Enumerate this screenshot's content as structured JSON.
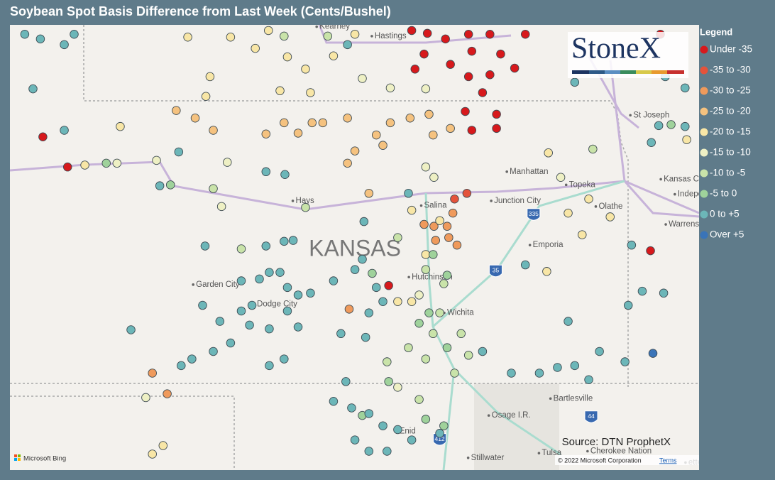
{
  "header": {
    "title": "Soybean Spot Basis Difference from Last Week (Cents/Bushel)"
  },
  "map": {
    "lon_range": [
      -102.05,
      -93.68
    ],
    "lat_range": [
      36.08,
      40.81
    ],
    "region_label": {
      "name": "KANSAS",
      "lon": -97.86,
      "lat": 38.42
    },
    "places": [
      {
        "name": "Kearney",
        "lon": -98.29,
        "lat": 40.79
      },
      {
        "name": "Hastings",
        "lon": -97.62,
        "lat": 40.69
      },
      {
        "name": "St Joseph",
        "lon": -94.48,
        "lat": 39.85
      },
      {
        "name": "Manhattan",
        "lon": -95.98,
        "lat": 39.25
      },
      {
        "name": "Topeka",
        "lon": -95.26,
        "lat": 39.11
      },
      {
        "name": "Kansas City",
        "lon": -94.11,
        "lat": 39.17
      },
      {
        "name": "Independence",
        "lon": -93.94,
        "lat": 39.01
      },
      {
        "name": "Hays",
        "lon": -98.58,
        "lat": 38.94
      },
      {
        "name": "Salina",
        "lon": -97.02,
        "lat": 38.89
      },
      {
        "name": "Junction City",
        "lon": -96.17,
        "lat": 38.94
      },
      {
        "name": "Olathe",
        "lon": -94.9,
        "lat": 38.88
      },
      {
        "name": "Emporia",
        "lon": -95.7,
        "lat": 38.47
      },
      {
        "name": "Warrensburg",
        "lon": -94.05,
        "lat": 38.69
      },
      {
        "name": "Garden City",
        "lon": -99.79,
        "lat": 38.05
      },
      {
        "name": "Dodge City",
        "lon": -99.05,
        "lat": 37.84
      },
      {
        "name": "Hutchinson",
        "lon": -97.17,
        "lat": 38.13
      },
      {
        "name": "Wichita",
        "lon": -96.74,
        "lat": 37.75
      },
      {
        "name": "Bartlesville",
        "lon": -95.45,
        "lat": 36.84
      },
      {
        "name": "Osage I.R.",
        "lon": -96.2,
        "lat": 36.66
      },
      {
        "name": "Enid",
        "lon": -97.32,
        "lat": 36.49
      },
      {
        "name": "Tulsa",
        "lon": -95.59,
        "lat": 36.26
      },
      {
        "name": "Cherokee Nation",
        "lon": -95.0,
        "lat": 36.28
      },
      {
        "name": "Stillwater",
        "lon": -96.45,
        "lat": 36.21
      },
      {
        "name": "ettev",
        "lon": -93.81,
        "lat": 36.16
      }
    ],
    "shields": [
      {
        "name": "335",
        "lon": -95.69,
        "lat": 38.79
      },
      {
        "name": "35",
        "lon": -96.15,
        "lat": 38.19
      },
      {
        "name": "412",
        "lon": -96.83,
        "lat": 36.4
      },
      {
        "name": "44",
        "lon": -94.99,
        "lat": 36.64
      }
    ],
    "source": "Source: DTN ProphetX",
    "provider": "Microsoft Bing",
    "copyright": "© 2022 Microsoft Corporation",
    "terms": "Terms"
  },
  "logo": "StoneX",
  "legend": {
    "title": "Legend",
    "items": [
      {
        "label": "Under -35",
        "color": "#d7191c",
        "points": [
          [
            -97.17,
            40.75
          ],
          [
            -96.98,
            40.72
          ],
          [
            -96.76,
            40.66
          ],
          [
            -96.48,
            40.71
          ],
          [
            -96.22,
            40.71
          ],
          [
            -95.79,
            40.71
          ],
          [
            -97.02,
            40.5
          ],
          [
            -96.7,
            40.39
          ],
          [
            -96.44,
            40.53
          ],
          [
            -96.09,
            40.5
          ],
          [
            -97.13,
            40.34
          ],
          [
            -96.22,
            40.28
          ],
          [
            -96.48,
            40.26
          ],
          [
            -95.92,
            40.35
          ],
          [
            -96.31,
            40.09
          ],
          [
            -96.52,
            39.89
          ],
          [
            -96.14,
            39.86
          ],
          [
            -96.44,
            39.69
          ],
          [
            -96.14,
            39.71
          ],
          [
            -101.65,
            39.62
          ],
          [
            -101.35,
            39.3
          ],
          [
            -97.45,
            38.04
          ],
          [
            -94.27,
            38.41
          ],
          [
            -94.15,
            40.71
          ]
        ]
      },
      {
        "label": "-35 to -30",
        "color": "#e4533b",
        "points": [
          [
            -96.65,
            38.96
          ],
          [
            -96.5,
            39.02
          ]
        ]
      },
      {
        "label": "-30 to -25",
        "color": "#ef9a5c",
        "points": [
          [
            -97.02,
            38.69
          ],
          [
            -96.9,
            38.67
          ],
          [
            -96.74,
            38.67
          ],
          [
            -96.67,
            38.81
          ],
          [
            -96.72,
            38.55
          ],
          [
            -96.88,
            38.52
          ],
          [
            -96.62,
            38.47
          ],
          [
            -97.93,
            37.79
          ],
          [
            -100.32,
            37.11
          ],
          [
            -100.14,
            36.89
          ]
        ]
      },
      {
        "label": "-25 to -20",
        "color": "#f5c27f",
        "points": [
          [
            -100.03,
            39.9
          ],
          [
            -99.8,
            39.82
          ],
          [
            -99.58,
            39.69
          ],
          [
            -98.94,
            39.65
          ],
          [
            -98.72,
            39.77
          ],
          [
            -98.55,
            39.66
          ],
          [
            -98.38,
            39.77
          ],
          [
            -98.25,
            39.77
          ],
          [
            -97.95,
            39.82
          ],
          [
            -97.43,
            39.77
          ],
          [
            -97.19,
            39.82
          ],
          [
            -97.6,
            39.64
          ],
          [
            -96.91,
            39.64
          ],
          [
            -96.7,
            39.71
          ],
          [
            -97.86,
            39.47
          ],
          [
            -97.52,
            39.53
          ],
          [
            -97.95,
            39.34
          ],
          [
            -97.69,
            39.02
          ],
          [
            -96.96,
            39.86
          ]
        ]
      },
      {
        "label": "-20 to -15",
        "color": "#f8e6a6",
        "points": [
          [
            -99.89,
            40.68
          ],
          [
            -99.37,
            40.68
          ],
          [
            -98.91,
            40.75
          ],
          [
            -99.07,
            40.56
          ],
          [
            -98.68,
            40.47
          ],
          [
            -98.46,
            40.34
          ],
          [
            -98.12,
            40.48
          ],
          [
            -97.86,
            40.71
          ],
          [
            -99.62,
            40.26
          ],
          [
            -99.67,
            40.05
          ],
          [
            -98.77,
            40.11
          ],
          [
            -98.4,
            40.09
          ],
          [
            -100.71,
            39.73
          ],
          [
            -101.14,
            39.32
          ],
          [
            -97.17,
            38.84
          ],
          [
            -96.83,
            38.73
          ],
          [
            -97.0,
            38.37
          ],
          [
            -97.34,
            37.87
          ],
          [
            -97.17,
            37.87
          ],
          [
            -100.32,
            36.25
          ],
          [
            -100.19,
            36.34
          ],
          [
            -95.53,
            38.19
          ],
          [
            -95.27,
            38.81
          ],
          [
            -95.02,
            38.96
          ],
          [
            -95.1,
            38.58
          ],
          [
            -94.76,
            38.77
          ],
          [
            -93.83,
            39.59
          ],
          [
            -95.51,
            39.45
          ]
        ]
      },
      {
        "label": "-15 to -10",
        "color": "#eef0c4",
        "points": [
          [
            -99.41,
            39.35
          ],
          [
            -100.27,
            39.37
          ],
          [
            -100.75,
            39.34
          ],
          [
            -97.43,
            40.14
          ],
          [
            -97.77,
            40.24
          ],
          [
            -97.0,
            40.13
          ],
          [
            -97.0,
            39.3
          ],
          [
            -96.9,
            39.19
          ],
          [
            -95.36,
            39.19
          ],
          [
            -99.48,
            38.88
          ],
          [
            -97.08,
            37.94
          ],
          [
            -100.4,
            36.85
          ],
          [
            -97.34,
            36.96
          ]
        ]
      },
      {
        "label": "-10 to -5",
        "color": "#c9e3a9",
        "points": [
          [
            -99.24,
            38.43
          ],
          [
            -98.72,
            40.69
          ],
          [
            -98.19,
            40.69
          ],
          [
            -97.34,
            38.55
          ],
          [
            -97.0,
            38.21
          ],
          [
            -96.78,
            38.06
          ],
          [
            -96.83,
            37.75
          ],
          [
            -96.91,
            37.53
          ],
          [
            -97.0,
            37.26
          ],
          [
            -97.21,
            37.38
          ],
          [
            -96.65,
            37.11
          ],
          [
            -96.48,
            37.3
          ],
          [
            -96.57,
            37.53
          ],
          [
            -97.47,
            37.23
          ],
          [
            -97.08,
            36.83
          ],
          [
            -94.97,
            39.49
          ],
          [
            -99.58,
            39.07
          ],
          [
            -98.46,
            38.87
          ]
        ]
      },
      {
        "label": "-5 to 0",
        "color": "#9fd29b",
        "points": [
          [
            -100.88,
            39.34
          ],
          [
            -100.1,
            39.11
          ],
          [
            -97.65,
            38.17
          ],
          [
            -96.91,
            38.37
          ],
          [
            -96.74,
            38.15
          ],
          [
            -96.96,
            37.75
          ],
          [
            -97.08,
            37.64
          ],
          [
            -96.74,
            37.38
          ],
          [
            -97.45,
            37.02
          ],
          [
            -97.0,
            36.62
          ],
          [
            -96.78,
            36.55
          ],
          [
            -94.02,
            39.75
          ],
          [
            -97.77,
            36.66
          ]
        ]
      },
      {
        "label": "0 to +5",
        "color": "#6cb6b8",
        "points": [
          [
            -101.87,
            40.71
          ],
          [
            -101.68,
            40.66
          ],
          [
            -101.39,
            40.6
          ],
          [
            -101.27,
            40.71
          ],
          [
            -101.77,
            40.13
          ],
          [
            -101.39,
            39.69
          ],
          [
            -100.0,
            39.46
          ],
          [
            -100.23,
            39.1
          ],
          [
            -98.94,
            39.25
          ],
          [
            -98.71,
            39.22
          ],
          [
            -97.75,
            38.72
          ],
          [
            -97.21,
            39.02
          ],
          [
            -99.68,
            38.46
          ],
          [
            -98.94,
            38.46
          ],
          [
            -98.72,
            38.51
          ],
          [
            -98.61,
            38.52
          ],
          [
            -98.9,
            38.18
          ],
          [
            -98.77,
            38.18
          ],
          [
            -99.02,
            38.11
          ],
          [
            -99.24,
            38.09
          ],
          [
            -98.68,
            38.02
          ],
          [
            -98.55,
            37.94
          ],
          [
            -98.4,
            37.96
          ],
          [
            -98.12,
            38.09
          ],
          [
            -97.86,
            38.21
          ],
          [
            -97.77,
            38.32
          ],
          [
            -97.6,
            38.02
          ],
          [
            -97.52,
            37.87
          ],
          [
            -97.69,
            37.75
          ],
          [
            -97.73,
            37.49
          ],
          [
            -98.03,
            37.53
          ],
          [
            -99.71,
            37.83
          ],
          [
            -99.24,
            37.77
          ],
          [
            -99.11,
            37.83
          ],
          [
            -98.68,
            37.77
          ],
          [
            -99.5,
            37.66
          ],
          [
            -99.14,
            37.62
          ],
          [
            -98.9,
            37.58
          ],
          [
            -98.55,
            37.6
          ],
          [
            -99.37,
            37.43
          ],
          [
            -99.58,
            37.34
          ],
          [
            -99.84,
            37.26
          ],
          [
            -99.97,
            37.19
          ],
          [
            -100.58,
            37.57
          ],
          [
            -98.9,
            37.19
          ],
          [
            -98.72,
            37.26
          ],
          [
            -97.97,
            37.02
          ],
          [
            -98.12,
            36.81
          ],
          [
            -97.9,
            36.74
          ],
          [
            -97.69,
            36.68
          ],
          [
            -97.52,
            36.55
          ],
          [
            -97.34,
            36.51
          ],
          [
            -97.17,
            36.4
          ],
          [
            -97.69,
            36.28
          ],
          [
            -97.47,
            36.28
          ],
          [
            -97.86,
            36.4
          ],
          [
            -96.83,
            36.47
          ],
          [
            -96.31,
            37.34
          ],
          [
            -95.96,
            37.11
          ],
          [
            -95.62,
            37.11
          ],
          [
            -95.4,
            37.17
          ],
          [
            -95.19,
            37.19
          ],
          [
            -95.02,
            37.04
          ],
          [
            -94.89,
            37.34
          ],
          [
            -94.58,
            37.23
          ],
          [
            -94.5,
            38.47
          ],
          [
            -94.37,
            37.98
          ],
          [
            -94.11,
            37.96
          ],
          [
            -94.54,
            37.83
          ],
          [
            -95.27,
            37.66
          ],
          [
            -95.79,
            38.26
          ],
          [
            -95.19,
            40.2
          ],
          [
            -93.85,
            40.14
          ],
          [
            -94.09,
            40.26
          ],
          [
            -94.17,
            39.74
          ],
          [
            -93.85,
            39.73
          ],
          [
            -94.26,
            39.56
          ],
          [
            -97.95,
            40.6
          ]
        ]
      },
      {
        "label": "Over +5",
        "color": "#3a74b8",
        "points": [
          [
            -94.24,
            37.32
          ]
        ]
      }
    ]
  }
}
